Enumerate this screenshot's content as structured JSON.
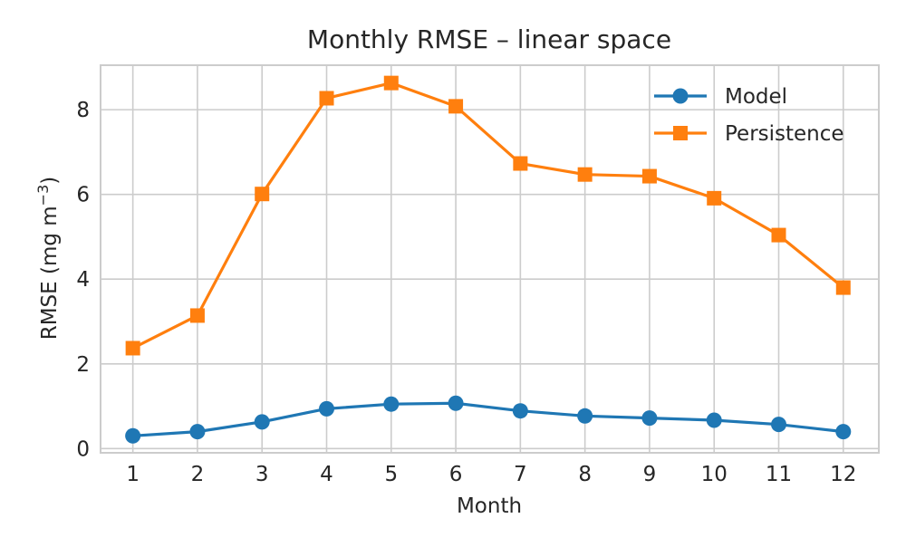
{
  "chart_data": {
    "type": "line",
    "title": "Monthly RMSE – linear space",
    "xlabel": "Month",
    "ylabel": "RMSE (mg m",
    "ylabel_sup": "−3",
    "ylabel_end": ")",
    "categories": [
      1,
      2,
      3,
      4,
      5,
      6,
      7,
      8,
      9,
      10,
      11,
      12
    ],
    "xlim": [
      0.5,
      12.55
    ],
    "ylim": [
      -0.1,
      9.05
    ],
    "yticks": [
      0,
      2,
      4,
      6,
      8
    ],
    "grid": true,
    "legend_position": "top-right",
    "series": [
      {
        "name": "Model",
        "marker": "circle",
        "color": "#1f77b4",
        "values": [
          0.3,
          0.4,
          0.63,
          0.94,
          1.05,
          1.07,
          0.89,
          0.77,
          0.72,
          0.67,
          0.57,
          0.4
        ]
      },
      {
        "name": "Persistence",
        "marker": "square",
        "color": "#ff7f0e",
        "values": [
          2.37,
          3.14,
          6.01,
          8.27,
          8.63,
          8.08,
          6.73,
          6.47,
          6.43,
          5.91,
          5.04,
          3.8
        ]
      }
    ]
  }
}
